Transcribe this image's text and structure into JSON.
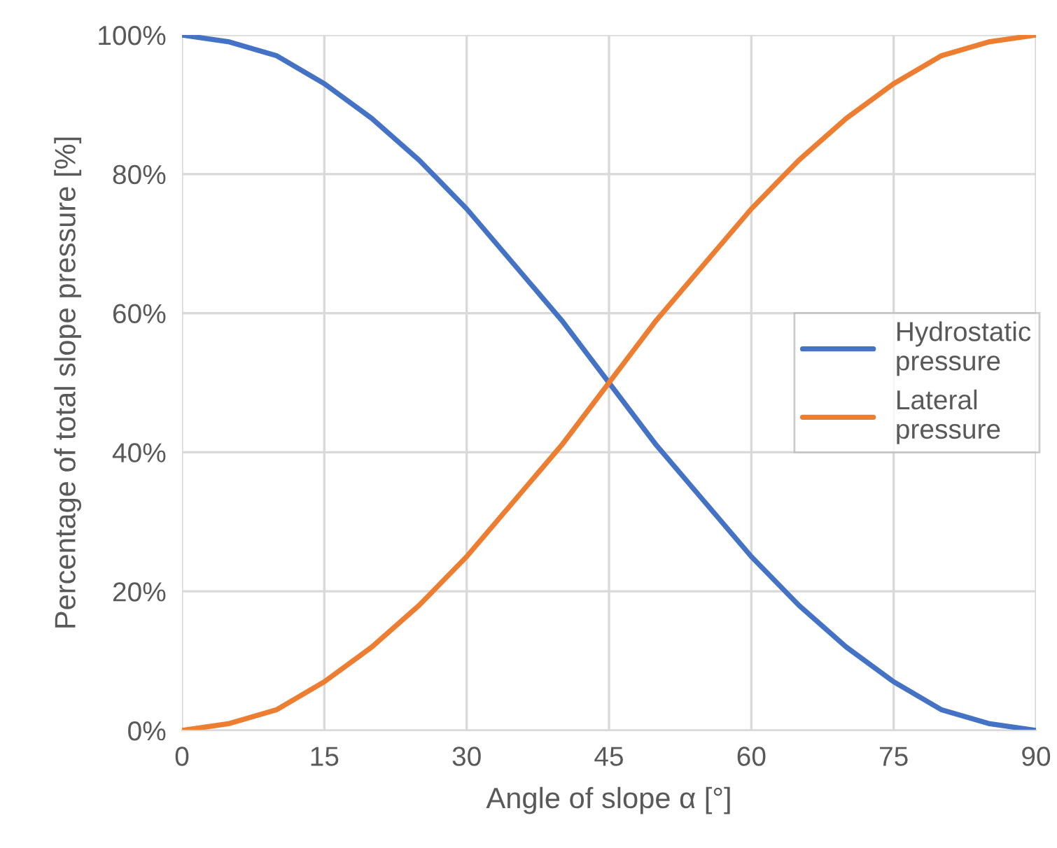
{
  "chart_data": {
    "type": "line",
    "xlabel": "Angle of slope α [°]",
    "ylabel": "Percentage of total slope pressure [%]",
    "x": [
      0,
      5,
      10,
      15,
      20,
      25,
      30,
      35,
      40,
      45,
      50,
      55,
      60,
      65,
      70,
      75,
      80,
      85,
      90
    ],
    "series": [
      {
        "name": "Hydrostatic\npressure",
        "color": "#4472c4",
        "values": [
          100,
          99,
          97,
          93,
          88,
          82,
          75,
          67,
          59,
          50,
          41,
          33,
          25,
          18,
          12,
          7,
          3,
          1,
          0
        ]
      },
      {
        "name": "Lateral\npressure",
        "color": "#ed7d31",
        "values": [
          0,
          1,
          3,
          7,
          12,
          18,
          25,
          33,
          41,
          50,
          59,
          67,
          75,
          82,
          88,
          93,
          97,
          99,
          100
        ]
      }
    ],
    "xlim": [
      0,
      90
    ],
    "xticks": [
      0,
      15,
      30,
      45,
      60,
      75,
      90
    ],
    "ylim": [
      0,
      100
    ],
    "yticks": [
      {
        "value": 0,
        "label": "0%"
      },
      {
        "value": 20,
        "label": "20%"
      },
      {
        "value": 40,
        "label": "40%"
      },
      {
        "value": 60,
        "label": "60%"
      },
      {
        "value": 80,
        "label": "80%"
      },
      {
        "value": 100,
        "label": "100%"
      }
    ],
    "grid": true,
    "legend": "right",
    "marker": "none",
    "line_style": "solid"
  }
}
